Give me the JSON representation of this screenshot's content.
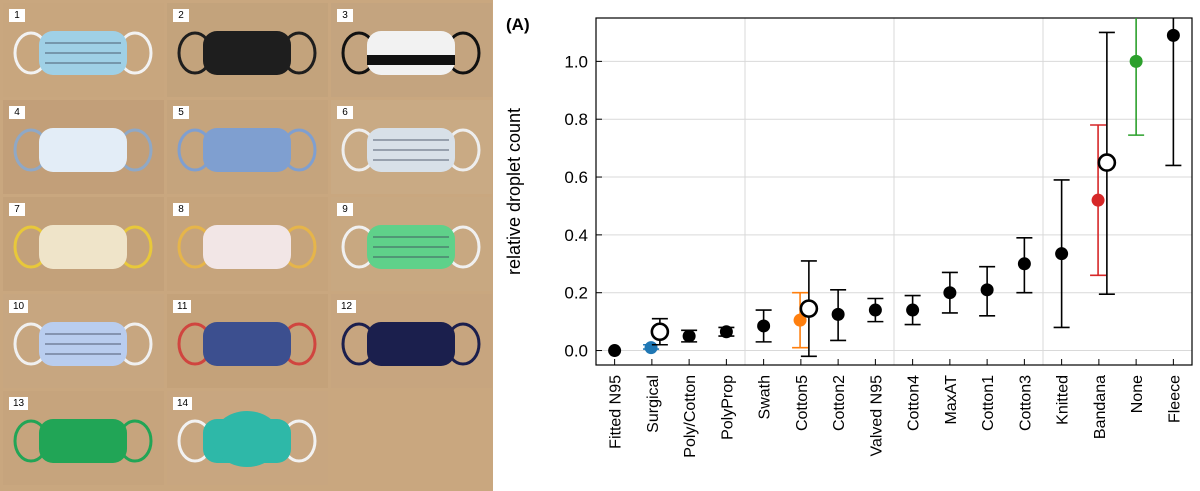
{
  "photos": [
    {
      "number": "1",
      "icon": "surgical-mask-icon",
      "bg": "#c8a67e",
      "mask": "#9fd0e6",
      "band": "#f2f2f2"
    },
    {
      "number": "2",
      "icon": "black-mask-icon",
      "bg": "#c3a37c",
      "mask": "#1e1e1e",
      "band": "#1e1e1e"
    },
    {
      "number": "3",
      "icon": "striped-gaiter-icon",
      "bg": "#c4a47f",
      "mask": "#f2f2f2",
      "band": "#111111"
    },
    {
      "number": "4",
      "icon": "pale-blue-mask-icon",
      "bg": "#c29f79",
      "mask": "#e3edf7",
      "band": "#8fa8c6"
    },
    {
      "number": "5",
      "icon": "blue-cotton-mask-icon",
      "bg": "#c5a47d",
      "mask": "#7f9fd0",
      "band": "#7f9fd0"
    },
    {
      "number": "6",
      "icon": "pleated-mask-icon",
      "bg": "#c9aa84",
      "mask": "#d8e0e8",
      "band": "#eeeeee"
    },
    {
      "number": "7",
      "icon": "patterned-mask-icon",
      "bg": "#c3a17a",
      "mask": "#efe4c9",
      "band": "#e8c83a"
    },
    {
      "number": "8",
      "icon": "floral-mask-icon",
      "bg": "#c6a47c",
      "mask": "#f2e6e6",
      "band": "#e6b54a"
    },
    {
      "number": "9",
      "icon": "green-mask-icon",
      "bg": "#c8a881",
      "mask": "#5fd18a",
      "band": "#f0f0f0"
    },
    {
      "number": "10",
      "icon": "pleated-blue-mask-icon",
      "bg": "#c7a680",
      "mask": "#b9cdef",
      "band": "#f0f0f0"
    },
    {
      "number": "11",
      "icon": "gaiter-icon",
      "bg": "#c4a27a",
      "mask": "#3c4f8f",
      "band": "#d0453f"
    },
    {
      "number": "12",
      "icon": "bandana-icon",
      "bg": "#c7a57f",
      "mask": "#1b1f4d",
      "band": "#1b1f4d"
    },
    {
      "number": "13",
      "icon": "fleece-mask-icon",
      "bg": "#c6a47d",
      "mask": "#21a556",
      "band": "#21a556"
    },
    {
      "number": "14",
      "icon": "n95-respirator-icon",
      "bg": "#c8a680",
      "mask": "#2eb8a8",
      "band": "#f2f2f2"
    }
  ],
  "chart_data": {
    "type": "scatter",
    "panel_label": "(A)",
    "xlabel": "",
    "ylabel": "relative droplet count",
    "ylim": [
      -0.05,
      1.15
    ],
    "yticks": [
      "0.0",
      "0.2",
      "0.4",
      "0.6",
      "0.8",
      "1.0"
    ],
    "ytick_values": [
      0.0,
      0.2,
      0.4,
      0.6,
      0.8,
      1.0
    ],
    "grid": true,
    "categories": [
      "Fitted N95",
      "Surgical",
      "Poly/Cotton",
      "PolyProp",
      "Swath",
      "Cotton5",
      "Cotton2",
      "Valved N95",
      "Cotton4",
      "MaxAT",
      "Cotton1",
      "Cotton3",
      "Knitted",
      "Bandana",
      "None",
      "Fleece"
    ],
    "points": [
      {
        "category": "Fitted N95",
        "y": 0.0,
        "low": 0.0,
        "high": 0.0,
        "color": "#000000",
        "marker": "filled"
      },
      {
        "category": "Surgical",
        "y": 0.01,
        "low": 0.005,
        "high": 0.02,
        "color": "#1f77b4",
        "marker": "filled"
      },
      {
        "category": "Surgical",
        "y": 0.065,
        "low": 0.02,
        "high": 0.11,
        "color": "#000000",
        "marker": "open"
      },
      {
        "category": "Poly/Cotton",
        "y": 0.05,
        "low": 0.03,
        "high": 0.07,
        "color": "#000000",
        "marker": "filled"
      },
      {
        "category": "PolyProp",
        "y": 0.065,
        "low": 0.05,
        "high": 0.08,
        "color": "#000000",
        "marker": "filled"
      },
      {
        "category": "Swath",
        "y": 0.085,
        "low": 0.03,
        "high": 0.14,
        "color": "#000000",
        "marker": "filled"
      },
      {
        "category": "Cotton5",
        "y": 0.105,
        "low": 0.01,
        "high": 0.2,
        "color": "#ff7f0e",
        "marker": "filled"
      },
      {
        "category": "Cotton5",
        "y": 0.145,
        "low": -0.02,
        "high": 0.31,
        "color": "#000000",
        "marker": "open"
      },
      {
        "category": "Cotton2",
        "y": 0.125,
        "low": 0.035,
        "high": 0.21,
        "color": "#000000",
        "marker": "filled"
      },
      {
        "category": "Valved N95",
        "y": 0.14,
        "low": 0.1,
        "high": 0.18,
        "color": "#000000",
        "marker": "filled"
      },
      {
        "category": "Cotton4",
        "y": 0.14,
        "low": 0.09,
        "high": 0.19,
        "color": "#000000",
        "marker": "filled"
      },
      {
        "category": "MaxAT",
        "y": 0.2,
        "low": 0.13,
        "high": 0.27,
        "color": "#000000",
        "marker": "filled"
      },
      {
        "category": "Cotton1",
        "y": 0.21,
        "low": 0.12,
        "high": 0.29,
        "color": "#000000",
        "marker": "filled"
      },
      {
        "category": "Cotton3",
        "y": 0.3,
        "low": 0.2,
        "high": 0.39,
        "color": "#000000",
        "marker": "filled"
      },
      {
        "category": "Knitted",
        "y": 0.335,
        "low": 0.08,
        "high": 0.59,
        "color": "#000000",
        "marker": "filled"
      },
      {
        "category": "Bandana",
        "y": 0.52,
        "low": 0.26,
        "high": 0.78,
        "color": "#d62728",
        "marker": "filled"
      },
      {
        "category": "Bandana",
        "y": 0.65,
        "low": 0.195,
        "high": 1.1,
        "color": "#000000",
        "marker": "open"
      },
      {
        "category": "None",
        "y": 1.0,
        "low": 0.745,
        "high": 1.15,
        "color": "#2ca02c",
        "marker": "filled"
      },
      {
        "category": "Fleece",
        "y": 1.09,
        "low": 0.64,
        "high": 1.15,
        "color": "#000000",
        "marker": "filled"
      }
    ]
  }
}
